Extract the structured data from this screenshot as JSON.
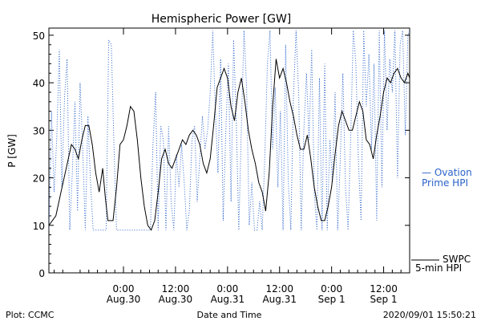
{
  "chart_data": {
    "type": "line",
    "title": "Hemispheric Power [GW]",
    "xlabel": "Date and Time",
    "ylabel": "P [GW]",
    "x_unit": "hours",
    "xlim": [
      -4.3,
      16.5
    ],
    "ylim": [
      0,
      51.5
    ],
    "grid": false,
    "y_ticks": [
      0,
      10,
      20,
      30,
      40,
      50
    ],
    "x_ticks": [
      {
        "x": 0,
        "time": "0:00",
        "date": "Aug.30"
      },
      {
        "x": 3,
        "time": "12:00",
        "date": "Aug.30"
      },
      {
        "x": 6,
        "time": "0:00",
        "date": "Aug.31"
      },
      {
        "x": 9,
        "time": "12:00",
        "date": "Aug.31"
      },
      {
        "x": 12,
        "time": "0:00",
        "date": "Sep 1"
      },
      {
        "x": 15,
        "time": "12:00",
        "date": "Sep 1"
      }
    ],
    "series": [
      {
        "name": "SWPC 5-min HPI",
        "color": "#000000",
        "style": "solid",
        "points": [
          [
            -4.3,
            10
          ],
          [
            -4.1,
            11
          ],
          [
            -3.9,
            12
          ],
          [
            -3.6,
            17
          ],
          [
            -3.3,
            22
          ],
          [
            -3.0,
            27
          ],
          [
            -2.8,
            26
          ],
          [
            -2.6,
            24
          ],
          [
            -2.4,
            28
          ],
          [
            -2.2,
            31
          ],
          [
            -2.0,
            31
          ],
          [
            -1.8,
            27
          ],
          [
            -1.6,
            21
          ],
          [
            -1.4,
            17
          ],
          [
            -1.2,
            22
          ],
          [
            -1.05,
            16
          ],
          [
            -0.9,
            11
          ],
          [
            -0.6,
            11
          ],
          [
            -0.4,
            18
          ],
          [
            -0.2,
            27
          ],
          [
            0.0,
            28
          ],
          [
            0.2,
            31
          ],
          [
            0.4,
            35
          ],
          [
            0.6,
            34
          ],
          [
            0.8,
            28
          ],
          [
            1.0,
            20
          ],
          [
            1.2,
            14
          ],
          [
            1.4,
            10
          ],
          [
            1.6,
            9
          ],
          [
            1.8,
            11
          ],
          [
            2.0,
            17
          ],
          [
            2.2,
            24
          ],
          [
            2.4,
            26
          ],
          [
            2.6,
            23
          ],
          [
            2.8,
            22
          ],
          [
            3.0,
            24
          ],
          [
            3.2,
            26
          ],
          [
            3.4,
            28
          ],
          [
            3.6,
            27
          ],
          [
            3.8,
            29
          ],
          [
            4.0,
            30
          ],
          [
            4.2,
            29
          ],
          [
            4.4,
            27
          ],
          [
            4.6,
            23
          ],
          [
            4.8,
            21
          ],
          [
            5.0,
            24
          ],
          [
            5.2,
            31
          ],
          [
            5.4,
            39
          ],
          [
            5.6,
            41
          ],
          [
            5.8,
            43
          ],
          [
            6.0,
            41
          ],
          [
            6.2,
            35
          ],
          [
            6.4,
            32
          ],
          [
            6.6,
            38
          ],
          [
            6.8,
            41
          ],
          [
            7.0,
            36
          ],
          [
            7.2,
            30
          ],
          [
            7.4,
            26
          ],
          [
            7.6,
            23
          ],
          [
            7.8,
            19
          ],
          [
            8.0,
            17
          ],
          [
            8.2,
            13
          ],
          [
            8.4,
            21
          ],
          [
            8.6,
            35
          ],
          [
            8.8,
            45
          ],
          [
            9.0,
            41
          ],
          [
            9.2,
            43
          ],
          [
            9.4,
            40
          ],
          [
            9.6,
            36
          ],
          [
            9.8,
            33
          ],
          [
            10.0,
            29
          ],
          [
            10.2,
            26
          ],
          [
            10.4,
            26
          ],
          [
            10.6,
            29
          ],
          [
            10.8,
            24
          ],
          [
            11.0,
            18
          ],
          [
            11.2,
            14
          ],
          [
            11.4,
            11
          ],
          [
            11.6,
            11
          ],
          [
            11.8,
            14
          ],
          [
            12.0,
            18
          ],
          [
            12.2,
            25
          ],
          [
            12.4,
            31
          ],
          [
            12.6,
            34
          ],
          [
            12.8,
            32
          ],
          [
            13.0,
            30
          ],
          [
            13.2,
            30
          ],
          [
            13.4,
            33
          ],
          [
            13.6,
            36
          ],
          [
            13.8,
            34
          ],
          [
            14.0,
            28
          ],
          [
            14.2,
            27
          ],
          [
            14.4,
            24
          ],
          [
            14.6,
            29
          ],
          [
            14.8,
            33
          ],
          [
            15.0,
            38
          ],
          [
            15.2,
            41
          ],
          [
            15.4,
            40
          ],
          [
            15.6,
            42
          ],
          [
            15.8,
            43
          ],
          [
            16.0,
            41
          ],
          [
            16.2,
            40
          ],
          [
            16.4,
            42
          ],
          [
            16.5,
            41
          ]
        ]
      },
      {
        "name": "Ovation Prime HPI",
        "color": "#2a62c9",
        "style": "dotted",
        "points": [
          [
            -4.3,
            9
          ],
          [
            -4.15,
            34
          ],
          [
            -4.0,
            17
          ],
          [
            -3.85,
            28
          ],
          [
            -3.7,
            47
          ],
          [
            -3.55,
            18
          ],
          [
            -3.4,
            37
          ],
          [
            -3.25,
            45
          ],
          [
            -3.1,
            9
          ],
          [
            -2.95,
            21
          ],
          [
            -2.8,
            36
          ],
          [
            -2.65,
            13
          ],
          [
            -2.5,
            40
          ],
          [
            -2.35,
            26
          ],
          [
            -2.2,
            9
          ],
          [
            -2.05,
            33
          ],
          [
            -1.9,
            19
          ],
          [
            -1.75,
            9
          ],
          [
            -1.6,
            9
          ],
          [
            -1.45,
            9
          ],
          [
            -1.3,
            9
          ],
          [
            -1.15,
            9
          ],
          [
            -1.0,
            9
          ],
          [
            -0.85,
            49
          ],
          [
            -0.7,
            48
          ],
          [
            -0.55,
            27
          ],
          [
            -0.4,
            9
          ],
          [
            -0.25,
            9
          ],
          [
            -0.1,
            9
          ],
          [
            0.05,
            9
          ],
          [
            0.2,
            9
          ],
          [
            0.35,
            9
          ],
          [
            0.5,
            9
          ],
          [
            0.65,
            9
          ],
          [
            0.8,
            9
          ],
          [
            0.95,
            9
          ],
          [
            1.1,
            9
          ],
          [
            1.25,
            9
          ],
          [
            1.4,
            9
          ],
          [
            1.55,
            9
          ],
          [
            1.7,
            27
          ],
          [
            1.85,
            38
          ],
          [
            2.0,
            9
          ],
          [
            2.15,
            31
          ],
          [
            2.3,
            28
          ],
          [
            2.45,
            9
          ],
          [
            2.6,
            31
          ],
          [
            2.75,
            15
          ],
          [
            2.9,
            9
          ],
          [
            3.05,
            25
          ],
          [
            3.2,
            18
          ],
          [
            3.35,
            27
          ],
          [
            3.5,
            19
          ],
          [
            3.65,
            9
          ],
          [
            3.8,
            13
          ],
          [
            3.95,
            28
          ],
          [
            4.1,
            31
          ],
          [
            4.25,
            15
          ],
          [
            4.4,
            24
          ],
          [
            4.55,
            33
          ],
          [
            4.7,
            26
          ],
          [
            4.85,
            30
          ],
          [
            5.0,
            38
          ],
          [
            5.15,
            51
          ],
          [
            5.3,
            34
          ],
          [
            5.45,
            21
          ],
          [
            5.6,
            45
          ],
          [
            5.75,
            11
          ],
          [
            5.9,
            30
          ],
          [
            6.05,
            44
          ],
          [
            6.2,
            15
          ],
          [
            6.35,
            49
          ],
          [
            6.5,
            32
          ],
          [
            6.65,
            9
          ],
          [
            6.8,
            31
          ],
          [
            6.95,
            51
          ],
          [
            7.1,
            39
          ],
          [
            7.25,
            10
          ],
          [
            7.4,
            19
          ],
          [
            7.55,
            9
          ],
          [
            7.7,
            9
          ],
          [
            7.85,
            15
          ],
          [
            8.0,
            9
          ],
          [
            8.15,
            25
          ],
          [
            8.3,
            44
          ],
          [
            8.45,
            51
          ],
          [
            8.6,
            26
          ],
          [
            8.75,
            39
          ],
          [
            8.9,
            18
          ],
          [
            9.05,
            34
          ],
          [
            9.2,
            9
          ],
          [
            9.35,
            48
          ],
          [
            9.5,
            19
          ],
          [
            9.65,
            9
          ],
          [
            9.8,
            37
          ],
          [
            9.95,
            51
          ],
          [
            10.1,
            38
          ],
          [
            10.25,
            9
          ],
          [
            10.4,
            30
          ],
          [
            10.55,
            42
          ],
          [
            10.7,
            28
          ],
          [
            10.85,
            47
          ],
          [
            11.0,
            17
          ],
          [
            11.15,
            9
          ],
          [
            11.3,
            41
          ],
          [
            11.45,
            9
          ],
          [
            11.6,
            44
          ],
          [
            11.75,
            9
          ],
          [
            11.9,
            28
          ],
          [
            12.05,
            19
          ],
          [
            12.2,
            38
          ],
          [
            12.35,
            9
          ],
          [
            12.5,
            24
          ],
          [
            12.65,
            42
          ],
          [
            12.8,
            18
          ],
          [
            12.95,
            9
          ],
          [
            13.1,
            28
          ],
          [
            13.25,
            51
          ],
          [
            13.4,
            44
          ],
          [
            13.55,
            23
          ],
          [
            13.7,
            11
          ],
          [
            13.85,
            51
          ],
          [
            14.0,
            35
          ],
          [
            14.15,
            46
          ],
          [
            14.3,
            26
          ],
          [
            14.45,
            44
          ],
          [
            14.6,
            11
          ],
          [
            14.75,
            51
          ],
          [
            14.9,
            18
          ],
          [
            15.05,
            51
          ],
          [
            15.2,
            30
          ],
          [
            15.35,
            45
          ],
          [
            15.5,
            38
          ],
          [
            15.65,
            51
          ],
          [
            15.8,
            20
          ],
          [
            15.95,
            48
          ],
          [
            16.1,
            51
          ],
          [
            16.25,
            29
          ],
          [
            16.4,
            50
          ],
          [
            16.5,
            51
          ]
        ]
      }
    ]
  },
  "legend": {
    "ovation_line1": "— Ovation",
    "ovation_line2": "Prime HPI",
    "swpc_line1": "SWPC",
    "swpc_line2": "5-min HPI"
  },
  "footer": {
    "left": "Plot: CCMC",
    "center": "Date and Time",
    "right": "2020/09/01  15:50:21"
  }
}
